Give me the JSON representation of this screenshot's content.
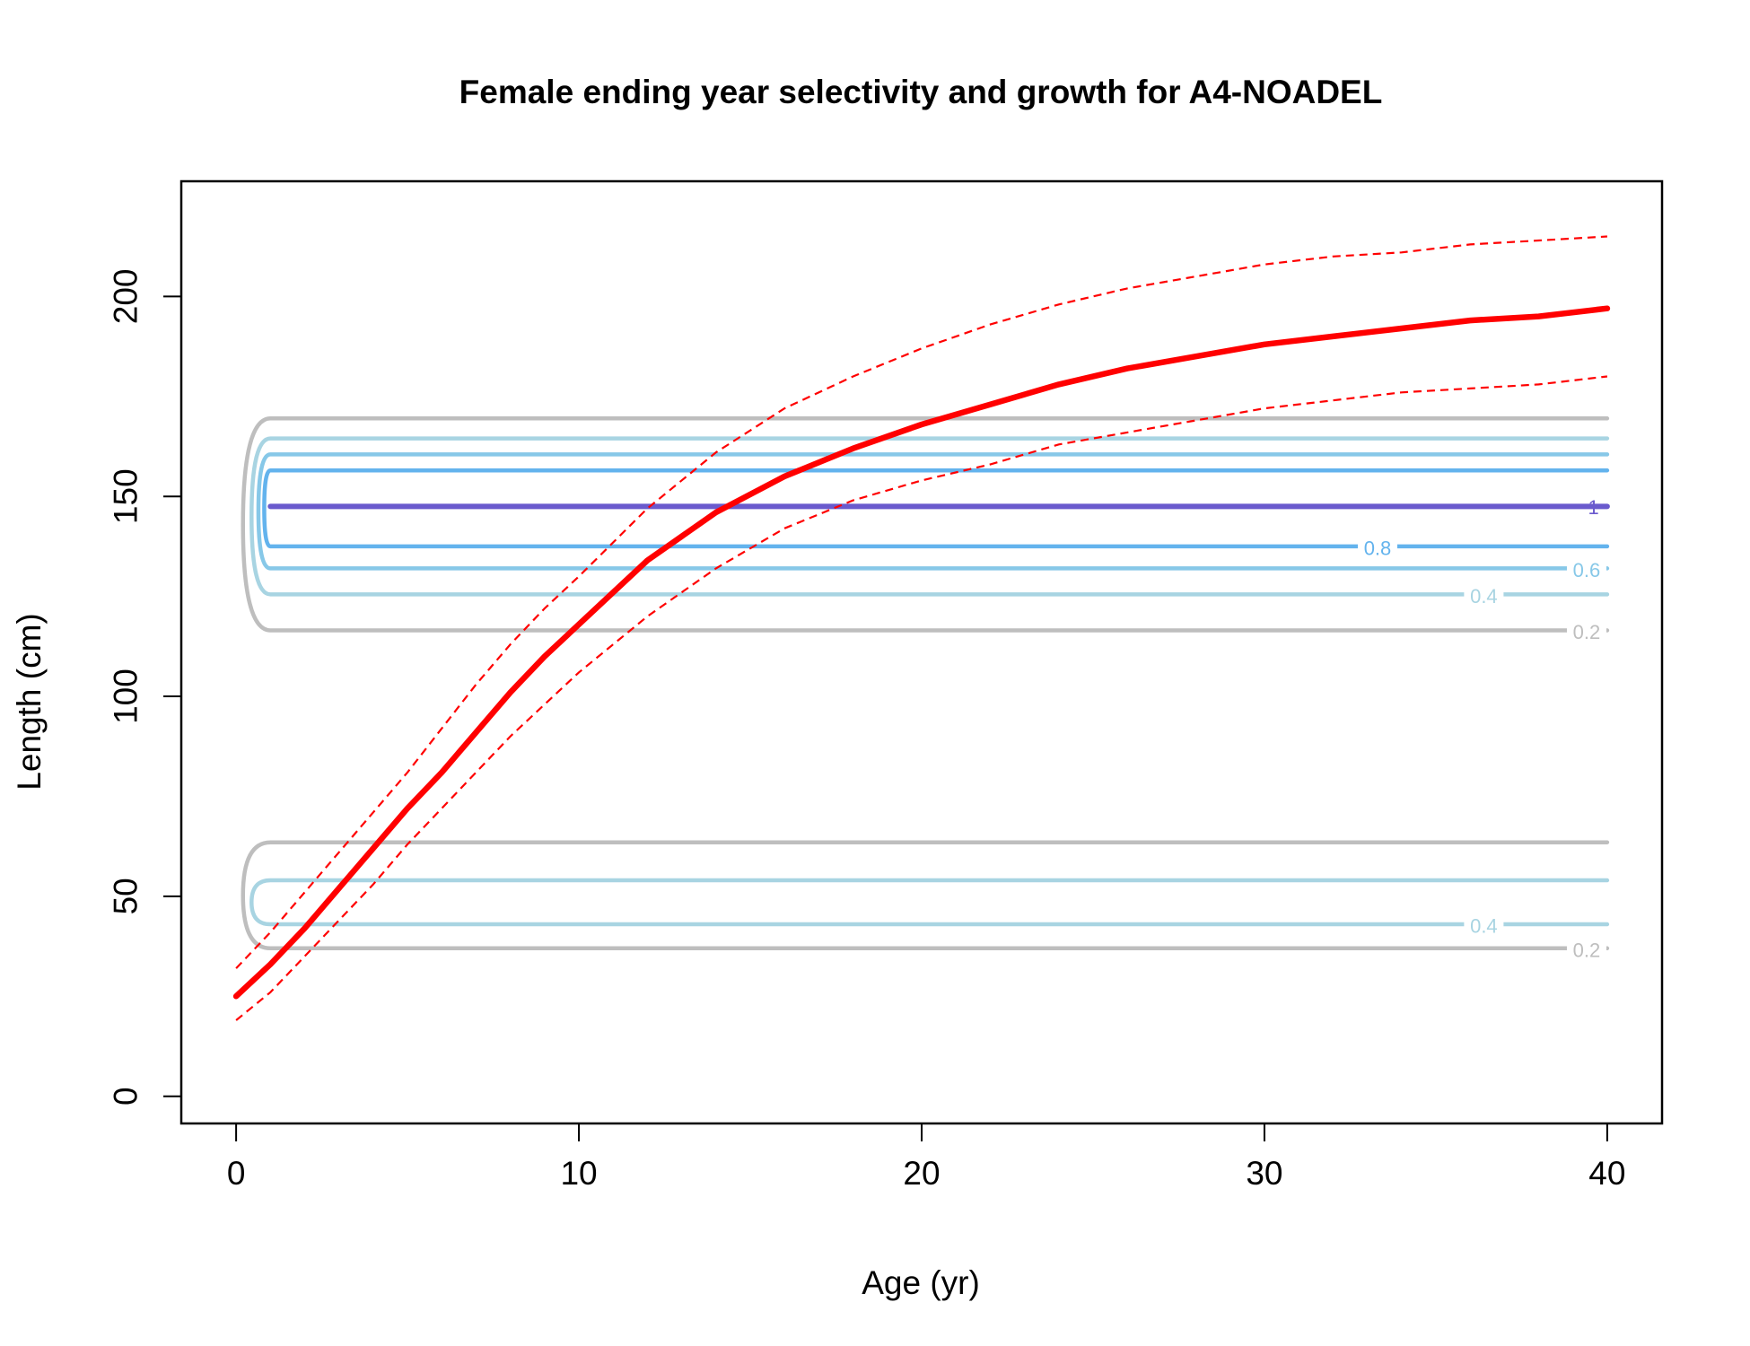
{
  "chart_data": {
    "type": "line",
    "title": "Female ending year selectivity and growth for A4-NOADEL",
    "xlabel": "Age (yr)",
    "ylabel": "Length (cm)",
    "xlim": [
      -1.6,
      41.6
    ],
    "ylim": [
      -6.8,
      228.8
    ],
    "xticks": [
      0,
      10,
      20,
      30,
      40
    ],
    "yticks": [
      0,
      50,
      100,
      150,
      200
    ],
    "grid": false,
    "growth": {
      "age": [
        0,
        1,
        2,
        3,
        4,
        5,
        6,
        7,
        8,
        9,
        10,
        12,
        14,
        16,
        18,
        20,
        22,
        24,
        26,
        28,
        30,
        32,
        34,
        36,
        38,
        40
      ],
      "mean": [
        25,
        33,
        42,
        52,
        62,
        72,
        81,
        91,
        101,
        110,
        118,
        134,
        146,
        155,
        162,
        168,
        173,
        178,
        182,
        185,
        188,
        190,
        192,
        194,
        195,
        197
      ],
      "upper": [
        32,
        41,
        51,
        61,
        71,
        81,
        92,
        103,
        113,
        122,
        130,
        147,
        161,
        172,
        180,
        187,
        193,
        198,
        202,
        205,
        208,
        210,
        211,
        213,
        214,
        215
      ],
      "lower": [
        19,
        26,
        35,
        44,
        53,
        63,
        72,
        81,
        90,
        98,
        106,
        120,
        132,
        142,
        149,
        154,
        158,
        163,
        166,
        169,
        172,
        174,
        176,
        177,
        178,
        180
      ],
      "colors": {
        "mean": "#ff0000",
        "interval": "#ff0000"
      }
    },
    "selectivity_contours": [
      {
        "level": 1.0,
        "color": "#6a5acd",
        "label": "1",
        "bands": [
          [
            147.5,
            147.5
          ]
        ]
      },
      {
        "level": 0.8,
        "color": "#63b3ed",
        "label": "0.8",
        "bands": [
          [
            137.5,
            156.5
          ]
        ]
      },
      {
        "level": 0.6,
        "color": "#87c8e8",
        "label": "0.6",
        "bands": [
          [
            132.0,
            160.5
          ]
        ]
      },
      {
        "level": 0.4,
        "color": "#a8d4e2",
        "label": "0.4",
        "bands": [
          [
            125.5,
            164.5
          ],
          [
            43.0,
            54.0
          ]
        ]
      },
      {
        "level": 0.2,
        "color": "#bebebe",
        "label": "0.2",
        "bands": [
          [
            116.5,
            169.5
          ],
          [
            37.0,
            63.5
          ]
        ]
      }
    ]
  }
}
